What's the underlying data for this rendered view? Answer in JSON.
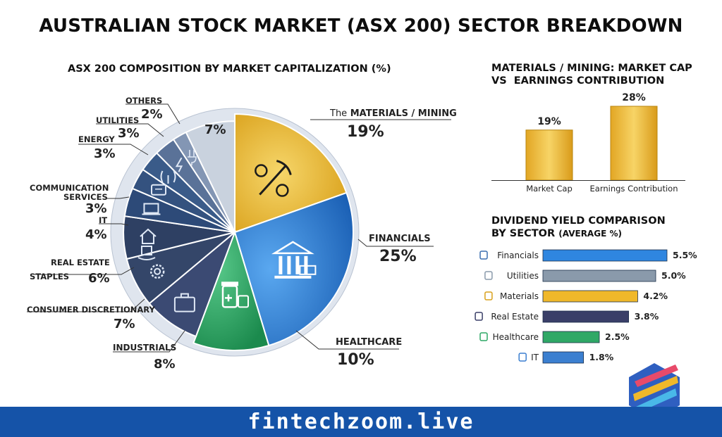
{
  "title": "AUSTRALIAN STOCK MARKET (ASX 200) SECTOR BREAKDOWN",
  "pie_title": "ASX 200 COMPOSITION BY MARKET CAPITALIZATION (%)",
  "bar_title_line1": "MATERIALS / MINING: MARKET CAP",
  "bar_title_line2": "VS  EARNINGS CONTRIBUTION",
  "div_title_line1": "DIVIDEND YIELD COMPARISON",
  "div_title_line2": "BY SECTOR",
  "div_title_suffix": "(AVERAGE %)",
  "footer": "fintechzoom.live",
  "labels": {
    "materials_prefix": "The",
    "materials": "MATERIALS / MINING",
    "materials_val": "19%",
    "financials": "FINANCIALS",
    "financials_val": "25%",
    "healthcare": "HEALTHCARE",
    "healthcare_val": "10%",
    "industrials": "INDUSTRIALS",
    "industrials_val": "8%",
    "consumer": "CONSUMER DISCRETIONARY",
    "consumer_val": "7%",
    "real_estate": "REAL ESTATE",
    "staples": "STAPLES",
    "staples_val": "6%",
    "it": "IT",
    "it_val": "4%",
    "comm1": "COMMUNICATION",
    "comm2": "SERVICES",
    "comm_val": "3%",
    "energy": "ENERGY",
    "energy_val": "3%",
    "utilities": "UTILITIES",
    "utilities_val": "3%",
    "others": "OTHERS",
    "others_val": "2%",
    "unlabeled_val": "7%"
  },
  "colors": {
    "gold": "#f0b82a",
    "blue": "#2a7fd6",
    "green": "#2fa866",
    "navy": "#243e66",
    "footer": "#1553a8"
  },
  "chart_data": [
    {
      "type": "pie",
      "title": "ASX 200 COMPOSITION BY MARKET CAPITALIZATION (%)",
      "categories": [
        "The MATERIALS / MINING",
        "FINANCIALS",
        "HEALTHCARE",
        "INDUSTRIALS",
        "CONSUMER DISCRETIONARY",
        "STAPLES",
        "REAL ESTATE",
        "IT",
        "COMMUNICATION SERVICES",
        "ENERGY",
        "UTILITIES",
        "OTHERS",
        ""
      ],
      "values": [
        19,
        25,
        10,
        8,
        7,
        6,
        0,
        4,
        3,
        3,
        3,
        2,
        7
      ],
      "printed_values": [
        "19%",
        "25%",
        "10%",
        "8%",
        "7%",
        "6%",
        "",
        "4%",
        "3%",
        "3%",
        "3%",
        "2%",
        "7%"
      ]
    },
    {
      "type": "bar",
      "title": "MATERIALS / MINING: MARKET CAP VS  EARNINGS CONTRIBUTION",
      "categories": [
        "Market Cap",
        "Earnings Contribution"
      ],
      "values": [
        19,
        28
      ],
      "value_labels": [
        "19%",
        "28%"
      ]
    },
    {
      "type": "bar",
      "orientation": "horizontal",
      "title": "DIVIDEND YIELD COMPARISON BY SECTOR (AVERAGE %)",
      "categories": [
        "Financials",
        "Utilities",
        "Materials",
        "Real Estate",
        "Healthcare",
        "IT"
      ],
      "values": [
        5.5,
        5.0,
        4.2,
        3.8,
        2.5,
        1.8
      ],
      "value_labels": [
        "5.5%",
        "5.0%",
        "4.2%",
        "3.8%",
        "2.5%",
        "1.8%"
      ],
      "colors": [
        "#2f86e0",
        "#8a9aab",
        "#f0b82a",
        "#3a3f68",
        "#2fa866",
        "#3b7fd0"
      ],
      "icons": [
        "bank-icon",
        "plug-icon",
        "gear-icon",
        "house-icon",
        "medicine-icon",
        "laptop-icon"
      ]
    }
  ]
}
